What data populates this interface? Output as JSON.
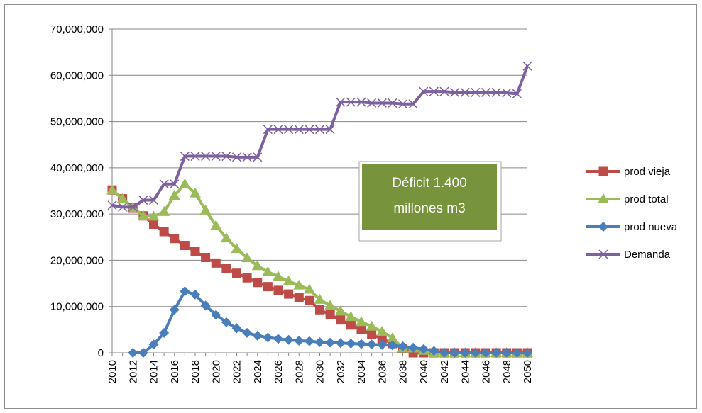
{
  "chart_data": {
    "type": "line",
    "title": "",
    "xlabel": "",
    "ylabel": "",
    "x": [
      2010,
      2011,
      2012,
      2013,
      2014,
      2015,
      2016,
      2017,
      2018,
      2019,
      2020,
      2021,
      2022,
      2023,
      2024,
      2025,
      2026,
      2027,
      2028,
      2029,
      2030,
      2031,
      2032,
      2033,
      2034,
      2035,
      2036,
      2037,
      2038,
      2039,
      2040,
      2041,
      2042,
      2043,
      2044,
      2045,
      2046,
      2047,
      2048,
      2049,
      2050
    ],
    "xlim": [
      2010,
      2050
    ],
    "ylim": [
      0,
      70000000
    ],
    "y_ticks": [
      "0",
      "10,000,000",
      "20,000,000",
      "30,000,000",
      "40,000,000",
      "50,000,000",
      "60,000,000",
      "70,000,000"
    ],
    "y_tick_values": [
      0,
      10000000,
      20000000,
      30000000,
      40000000,
      50000000,
      60000000,
      70000000
    ],
    "x_ticks": [
      "2010",
      "2012",
      "2014",
      "2016",
      "2018",
      "2020",
      "2022",
      "2024",
      "2026",
      "2028",
      "2030",
      "2032",
      "2034",
      "2036",
      "2038",
      "2040",
      "2042",
      "2044",
      "2046",
      "2048",
      "2050"
    ],
    "x_tick_values": [
      2010,
      2012,
      2014,
      2016,
      2018,
      2020,
      2022,
      2024,
      2026,
      2028,
      2030,
      2032,
      2034,
      2036,
      2038,
      2040,
      2042,
      2044,
      2046,
      2048,
      2050
    ],
    "grid": "horizontal",
    "legend_position": "right",
    "series": [
      {
        "name": "prod vieja",
        "color": "#be4b48",
        "marker": "square",
        "values": [
          35200000,
          33300000,
          31400000,
          29600000,
          27800000,
          26200000,
          24700000,
          23200000,
          21900000,
          20600000,
          19400000,
          18200000,
          17200000,
          16200000,
          15200000,
          14300000,
          13500000,
          12700000,
          12000000,
          11300000,
          9300000,
          8200000,
          7100000,
          6000000,
          5000000,
          4000000,
          3000000,
          2000000,
          1000000,
          0,
          0,
          0,
          0,
          0,
          0,
          0,
          0,
          0,
          0,
          0,
          0
        ]
      },
      {
        "name": "prod total",
        "color": "#9bbb59",
        "marker": "triangle",
        "values": [
          35200000,
          33300000,
          31400000,
          29600000,
          29500000,
          30500000,
          34000000,
          36500000,
          34500000,
          30800000,
          27500000,
          24800000,
          22500000,
          20500000,
          18800000,
          17500000,
          16500000,
          15500000,
          14600000,
          13700000,
          11500000,
          10200000,
          9000000,
          7800000,
          6700000,
          5700000,
          4600000,
          3200000,
          1000000,
          1000000,
          500000,
          0,
          0,
          0,
          0,
          0,
          0,
          0,
          0,
          0,
          0
        ]
      },
      {
        "name": "prod nueva",
        "color": "#4a7ebb",
        "marker": "diamond",
        "values": [
          null,
          null,
          0,
          0,
          1800000,
          4300000,
          9300000,
          13300000,
          12600000,
          10200000,
          8200000,
          6600000,
          5300000,
          4300000,
          3700000,
          3300000,
          3000000,
          2800000,
          2600000,
          2500000,
          2300000,
          2200000,
          2100000,
          2000000,
          1900000,
          1800000,
          1700000,
          1600000,
          1400000,
          1100000,
          800000,
          400000,
          0,
          0,
          0,
          0,
          0,
          0,
          0,
          0,
          0
        ]
      },
      {
        "name": "Demanda",
        "color": "#7d60a0",
        "marker": "x",
        "values": [
          31900000,
          31500000,
          31500000,
          33000000,
          33000000,
          36500000,
          36500000,
          42500000,
          42500000,
          42500000,
          42500000,
          42500000,
          42300000,
          42300000,
          42300000,
          48300000,
          48300000,
          48300000,
          48300000,
          48300000,
          48300000,
          48300000,
          54200000,
          54200000,
          54200000,
          54000000,
          54000000,
          54000000,
          53800000,
          53800000,
          56500000,
          56500000,
          56500000,
          56300000,
          56300000,
          56300000,
          56300000,
          56300000,
          56200000,
          56000000,
          62000000
        ]
      }
    ],
    "annotations": [
      {
        "text_line1": "Déficit 1.400",
        "text_line2": "millones m3",
        "fill": "#77933c"
      }
    ]
  }
}
